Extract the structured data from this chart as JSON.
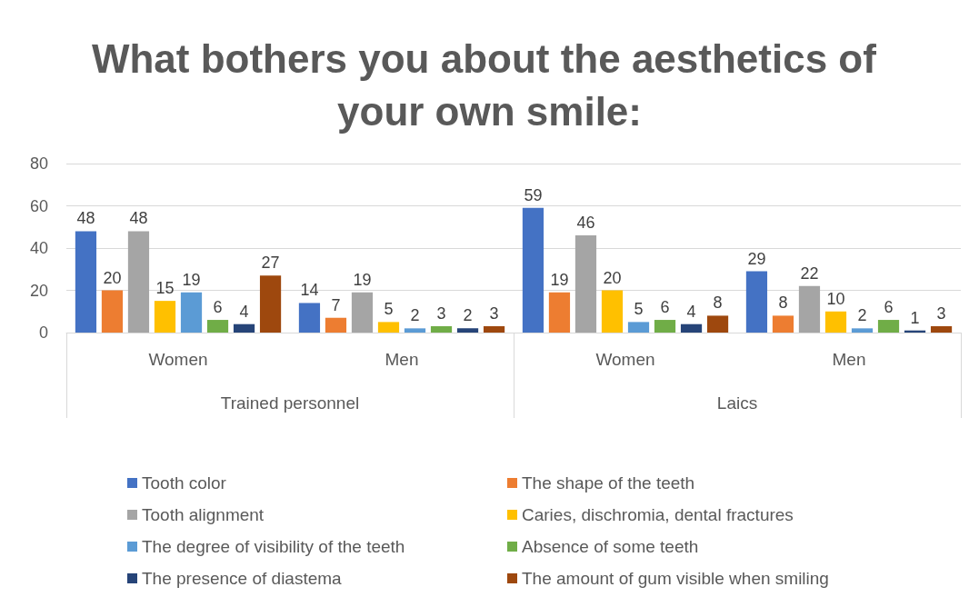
{
  "chart_data": {
    "type": "bar",
    "title": "What bothers you about the aesthetics of your own smile:",
    "categories": [
      "Women",
      "Men",
      "Women",
      "Men"
    ],
    "annotations": [
      "Trained personnel",
      "Laics"
    ],
    "series": [
      {
        "name": "Tooth color",
        "color": "#4472c4",
        "values": [
          48,
          14,
          59,
          29
        ]
      },
      {
        "name": "The shape of the teeth",
        "color": "#ed7d31",
        "values": [
          20,
          7,
          19,
          8
        ]
      },
      {
        "name": "Tooth alignment",
        "color": "#a5a5a5",
        "values": [
          48,
          19,
          46,
          22
        ]
      },
      {
        "name": "Caries, dischromia, dental fractures",
        "color": "#ffc000",
        "values": [
          15,
          5,
          20,
          10
        ]
      },
      {
        "name": "The degree of visibility of the teeth",
        "color": "#5b9bd5",
        "values": [
          19,
          2,
          5,
          2
        ]
      },
      {
        "name": "Absence of some teeth",
        "color": "#70ad47",
        "values": [
          6,
          3,
          6,
          6
        ]
      },
      {
        "name": "The presence of diastema",
        "color": "#264478",
        "values": [
          4,
          2,
          4,
          1
        ]
      },
      {
        "name": "The amount of gum visible when smiling",
        "color": "#9e480e",
        "values": [
          27,
          3,
          8,
          3
        ]
      }
    ],
    "ylim": [
      0,
      80
    ],
    "yticks": [
      0,
      20,
      40,
      60,
      80
    ],
    "grid": "y",
    "data_labels": true,
    "legend": "bottom"
  }
}
